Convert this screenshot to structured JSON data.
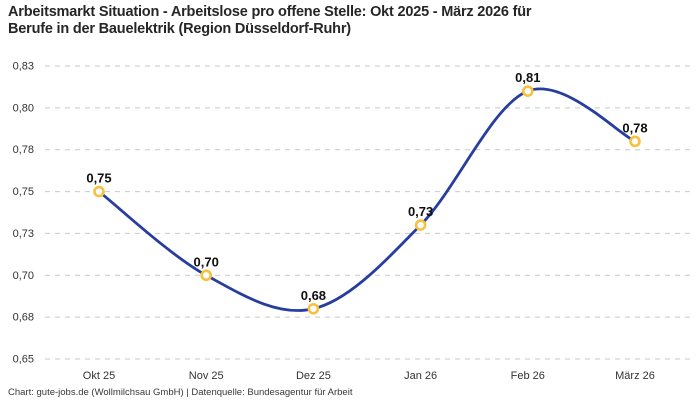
{
  "page": {
    "background": "#FFFFFF"
  },
  "chart_data": {
    "type": "line",
    "title": "Arbeitsmarkt Situation - Arbeitslose pro offene Stelle: Okt 2025 - März 2026 für Berufe in der Bauelektrik (Region Düsseldorf-Ruhr)",
    "title_lines": [
      "Arbeitsmarkt Situation - Arbeitslose pro offene Stelle: Okt 2025 - März 2026 für",
      "Berufe in der Bauelektrik (Region Düsseldorf-Ruhr)"
    ],
    "xlabel": "",
    "ylabel": "",
    "categories": [
      "Okt 25",
      "Nov 25",
      "Dez 25",
      "Jan 26",
      "Feb 26",
      "März 26"
    ],
    "values": [
      0.75,
      0.7,
      0.68,
      0.73,
      0.81,
      0.78
    ],
    "point_labels": [
      "0,75",
      "0,70",
      "0,68",
      "0,73",
      "0,81",
      "0,78"
    ],
    "ylim": [
      0.65,
      0.825
    ],
    "y_ticks": [
      {
        "value": 0.65,
        "label": "0,65"
      },
      {
        "value": 0.675,
        "label": "0,68"
      },
      {
        "value": 0.7,
        "label": "0,70"
      },
      {
        "value": 0.725,
        "label": "0,73"
      },
      {
        "value": 0.75,
        "label": "0,75"
      },
      {
        "value": 0.775,
        "label": "0,78"
      },
      {
        "value": 0.8,
        "label": "0,80"
      },
      {
        "value": 0.825,
        "label": "0,83"
      }
    ],
    "grid": true,
    "grid_style": "dashed",
    "legend": false,
    "curve": "smooth",
    "colors": {
      "line": "#283E9E",
      "marker_stroke": "#F7C13E",
      "marker_fill": "#FFFFFF",
      "grid": "#C9C9C9",
      "tick_text": "#333333",
      "point_label_text": "#0F0F0F",
      "title_text": "#262626",
      "footer_text": "#383838"
    }
  },
  "footer": {
    "text": "Chart: gute-jobs.de (Wollmilchsau GmbH) | Datenquelle: Bundesagentur für Arbeit"
  }
}
